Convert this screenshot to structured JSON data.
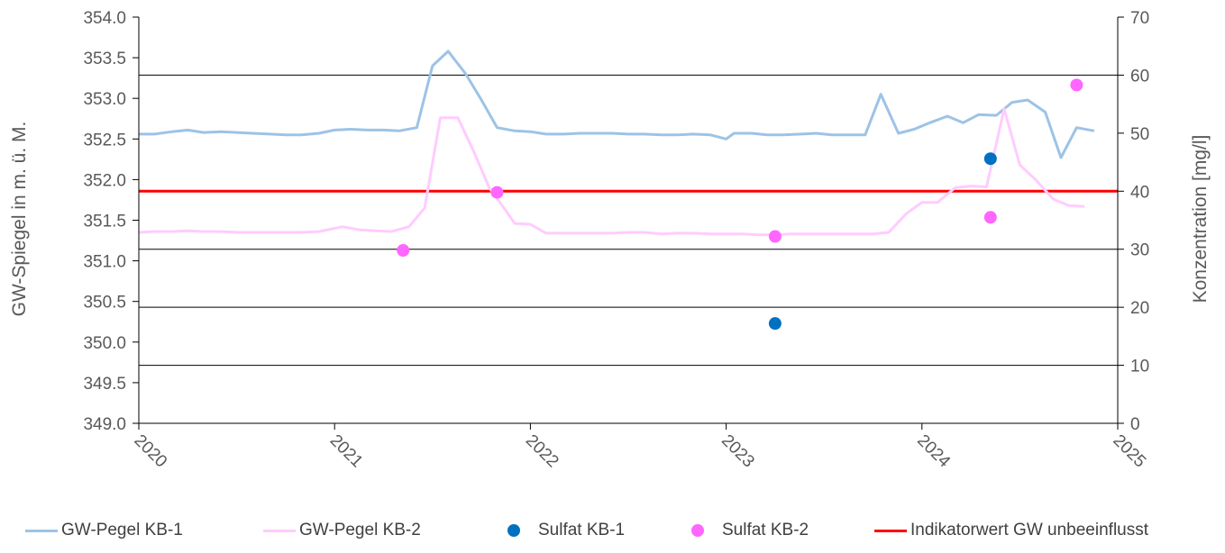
{
  "chart_data": {
    "type": "line",
    "y_left": {
      "label": "GW-Spiegel in m. ü. M.",
      "min": 349.0,
      "max": 354.0,
      "ticks": [
        "349.0",
        "349.5",
        "350.0",
        "350.5",
        "351.0",
        "351.5",
        "352.0",
        "352.5",
        "353.0",
        "353.5",
        "354.0"
      ]
    },
    "y_right": {
      "label": "Konzentration [mg/l]",
      "min": 0,
      "max": 70,
      "ticks": [
        "0",
        "10",
        "20",
        "30",
        "40",
        "50",
        "60",
        "70"
      ]
    },
    "x_axis": {
      "min": 2020.0,
      "max": 2025.0,
      "ticks": [
        "2020",
        "2021",
        "2022",
        "2023",
        "2024",
        "2025"
      ]
    },
    "gridlines_right_axis": [
      10,
      20,
      30,
      60
    ],
    "series": [
      {
        "name": "GW-Pegel KB-1",
        "axis": "left",
        "kind": "line",
        "color": "#9dc3e6",
        "points": [
          [
            2020.0,
            352.56
          ],
          [
            2020.08,
            352.56
          ],
          [
            2020.17,
            352.59
          ],
          [
            2020.25,
            352.61
          ],
          [
            2020.33,
            352.58
          ],
          [
            2020.42,
            352.59
          ],
          [
            2020.5,
            352.58
          ],
          [
            2020.58,
            352.57
          ],
          [
            2020.67,
            352.56
          ],
          [
            2020.75,
            352.55
          ],
          [
            2020.83,
            352.55
          ],
          [
            2020.92,
            352.57
          ],
          [
            2021.0,
            352.61
          ],
          [
            2021.08,
            352.62
          ],
          [
            2021.17,
            352.61
          ],
          [
            2021.25,
            352.61
          ],
          [
            2021.33,
            352.6
          ],
          [
            2021.42,
            352.64
          ],
          [
            2021.5,
            353.4
          ],
          [
            2021.58,
            353.58
          ],
          [
            2021.67,
            353.3
          ],
          [
            2021.75,
            352.98
          ],
          [
            2021.83,
            352.64
          ],
          [
            2021.92,
            352.6
          ],
          [
            2022.0,
            352.59
          ],
          [
            2022.08,
            352.56
          ],
          [
            2022.17,
            352.56
          ],
          [
            2022.25,
            352.57
          ],
          [
            2022.33,
            352.57
          ],
          [
            2022.42,
            352.57
          ],
          [
            2022.5,
            352.56
          ],
          [
            2022.58,
            352.56
          ],
          [
            2022.67,
            352.55
          ],
          [
            2022.75,
            352.55
          ],
          [
            2022.83,
            352.56
          ],
          [
            2022.92,
            352.55
          ],
          [
            2023.0,
            352.5
          ],
          [
            2023.04,
            352.57
          ],
          [
            2023.13,
            352.57
          ],
          [
            2023.21,
            352.55
          ],
          [
            2023.29,
            352.55
          ],
          [
            2023.38,
            352.56
          ],
          [
            2023.46,
            352.57
          ],
          [
            2023.54,
            352.55
          ],
          [
            2023.63,
            352.55
          ],
          [
            2023.71,
            352.55
          ],
          [
            2023.79,
            353.05
          ],
          [
            2023.88,
            352.57
          ],
          [
            2023.96,
            352.62
          ],
          [
            2024.04,
            352.7
          ],
          [
            2024.13,
            352.78
          ],
          [
            2024.21,
            352.7
          ],
          [
            2024.29,
            352.8
          ],
          [
            2024.38,
            352.79
          ],
          [
            2024.46,
            352.95
          ],
          [
            2024.54,
            352.98
          ],
          [
            2024.63,
            352.83
          ],
          [
            2024.71,
            352.27
          ],
          [
            2024.79,
            352.64
          ],
          [
            2024.88,
            352.6
          ]
        ]
      },
      {
        "name": "GW-Pegel KB-2",
        "axis": "left",
        "kind": "line",
        "color": "#ffccff",
        "points": [
          [
            2020.0,
            351.35
          ],
          [
            2020.08,
            351.36
          ],
          [
            2020.17,
            351.36
          ],
          [
            2020.25,
            351.37
          ],
          [
            2020.33,
            351.36
          ],
          [
            2020.42,
            351.36
          ],
          [
            2020.5,
            351.35
          ],
          [
            2020.58,
            351.35
          ],
          [
            2020.67,
            351.35
          ],
          [
            2020.75,
            351.35
          ],
          [
            2020.83,
            351.35
          ],
          [
            2020.92,
            351.36
          ],
          [
            2021.0,
            351.4
          ],
          [
            2021.04,
            351.42
          ],
          [
            2021.13,
            351.38
          ],
          [
            2021.21,
            351.37
          ],
          [
            2021.29,
            351.36
          ],
          [
            2021.38,
            351.42
          ],
          [
            2021.46,
            351.65
          ],
          [
            2021.54,
            352.76
          ],
          [
            2021.63,
            352.76
          ],
          [
            2021.71,
            352.35
          ],
          [
            2021.79,
            351.9
          ],
          [
            2021.88,
            351.6
          ],
          [
            2021.92,
            351.46
          ],
          [
            2022.0,
            351.45
          ],
          [
            2022.08,
            351.34
          ],
          [
            2022.17,
            351.34
          ],
          [
            2022.25,
            351.34
          ],
          [
            2022.33,
            351.34
          ],
          [
            2022.42,
            351.34
          ],
          [
            2022.5,
            351.35
          ],
          [
            2022.58,
            351.35
          ],
          [
            2022.67,
            351.33
          ],
          [
            2022.75,
            351.34
          ],
          [
            2022.83,
            351.34
          ],
          [
            2022.92,
            351.33
          ],
          [
            2023.0,
            351.33
          ],
          [
            2023.08,
            351.33
          ],
          [
            2023.17,
            351.32
          ],
          [
            2023.25,
            351.32
          ],
          [
            2023.33,
            351.33
          ],
          [
            2023.42,
            351.33
          ],
          [
            2023.5,
            351.33
          ],
          [
            2023.58,
            351.33
          ],
          [
            2023.67,
            351.33
          ],
          [
            2023.75,
            351.33
          ],
          [
            2023.83,
            351.35
          ],
          [
            2023.92,
            351.58
          ],
          [
            2024.0,
            351.72
          ],
          [
            2024.08,
            351.72
          ],
          [
            2024.17,
            351.9
          ],
          [
            2024.25,
            351.92
          ],
          [
            2024.33,
            351.91
          ],
          [
            2024.42,
            352.87
          ],
          [
            2024.5,
            352.18
          ],
          [
            2024.58,
            352.0
          ],
          [
            2024.67,
            351.76
          ],
          [
            2024.75,
            351.68
          ],
          [
            2024.83,
            351.67
          ]
        ]
      },
      {
        "name": "Sulfat KB-1",
        "axis": "right",
        "kind": "points",
        "color": "#0070c0",
        "points": [
          [
            2023.25,
            17.2
          ],
          [
            2024.35,
            45.6
          ]
        ]
      },
      {
        "name": "Sulfat KB-2",
        "axis": "right",
        "kind": "points",
        "color": "#ff66ff",
        "points": [
          [
            2021.35,
            29.8
          ],
          [
            2021.83,
            39.8
          ],
          [
            2023.25,
            32.2
          ],
          [
            2024.35,
            35.5
          ],
          [
            2024.79,
            58.3
          ]
        ]
      },
      {
        "name": "Indikatorwert GW unbeeinflusst",
        "axis": "right",
        "kind": "hline",
        "color": "#ff0000",
        "value": 40
      }
    ]
  }
}
